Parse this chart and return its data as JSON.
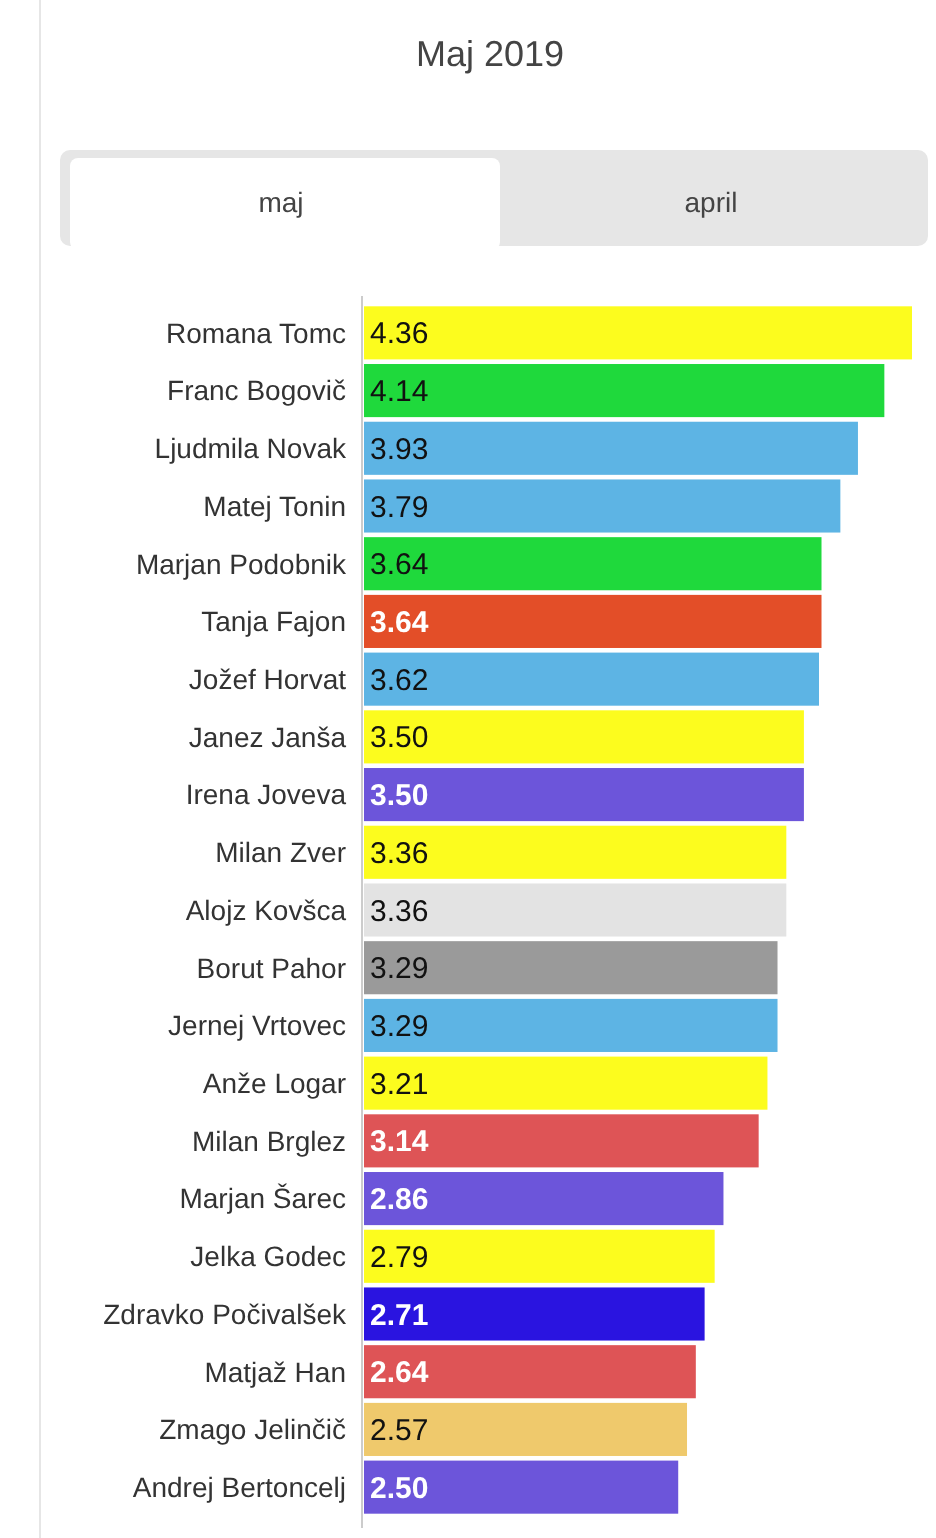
{
  "chart_data": {
    "type": "bar",
    "orientation": "horizontal",
    "title": "Maj 2019",
    "annotations": [
      "maj",
      "april"
    ],
    "categories": [
      "Romana Tomc",
      "Franc Bogovič",
      "Ljudmila Novak",
      "Matej Tonin",
      "Marjan Podobnik",
      "Tanja Fajon",
      "Jožef Horvat",
      "Janez Janša",
      "Irena Joveva",
      "Milan Zver",
      "Alojz Kovšca",
      "Borut Pahor",
      "Jernej Vrtovec",
      "Anže Logar",
      "Milan Brglez",
      "Marjan Šarec",
      "Jelka Godec",
      "Zdravko Počivalšek",
      "Matjaž Han",
      "Zmago Jelinčič",
      "Andrej Bertoncelj"
    ],
    "values": [
      4.36,
      4.14,
      3.93,
      3.79,
      3.64,
      3.64,
      3.62,
      3.5,
      3.5,
      3.36,
      3.36,
      3.29,
      3.29,
      3.21,
      3.14,
      2.86,
      2.79,
      2.71,
      2.64,
      2.57,
      2.5
    ],
    "value_labels": [
      "4.36",
      "4.14",
      "3.93",
      "3.79",
      "3.64",
      "3.64",
      "3.62",
      "3.50",
      "3.50",
      "3.36",
      "3.36",
      "3.29",
      "3.29",
      "3.21",
      "3.14",
      "2.86",
      "2.79",
      "2.71",
      "2.64",
      "2.57",
      "2.50"
    ],
    "colors": [
      "#fcfc1e",
      "#1fd93c",
      "#5db4e4",
      "#5db4e4",
      "#1fd93c",
      "#e34e28",
      "#5db4e4",
      "#fcfc1e",
      "#6c55da",
      "#fcfc1e",
      "#e3e3e3",
      "#9a9a9a",
      "#5db4e4",
      "#fcfc1e",
      "#de5456",
      "#6c55da",
      "#fcfc1e",
      "#2a14e0",
      "#de5456",
      "#efc96c",
      "#6c55da"
    ]
  }
}
